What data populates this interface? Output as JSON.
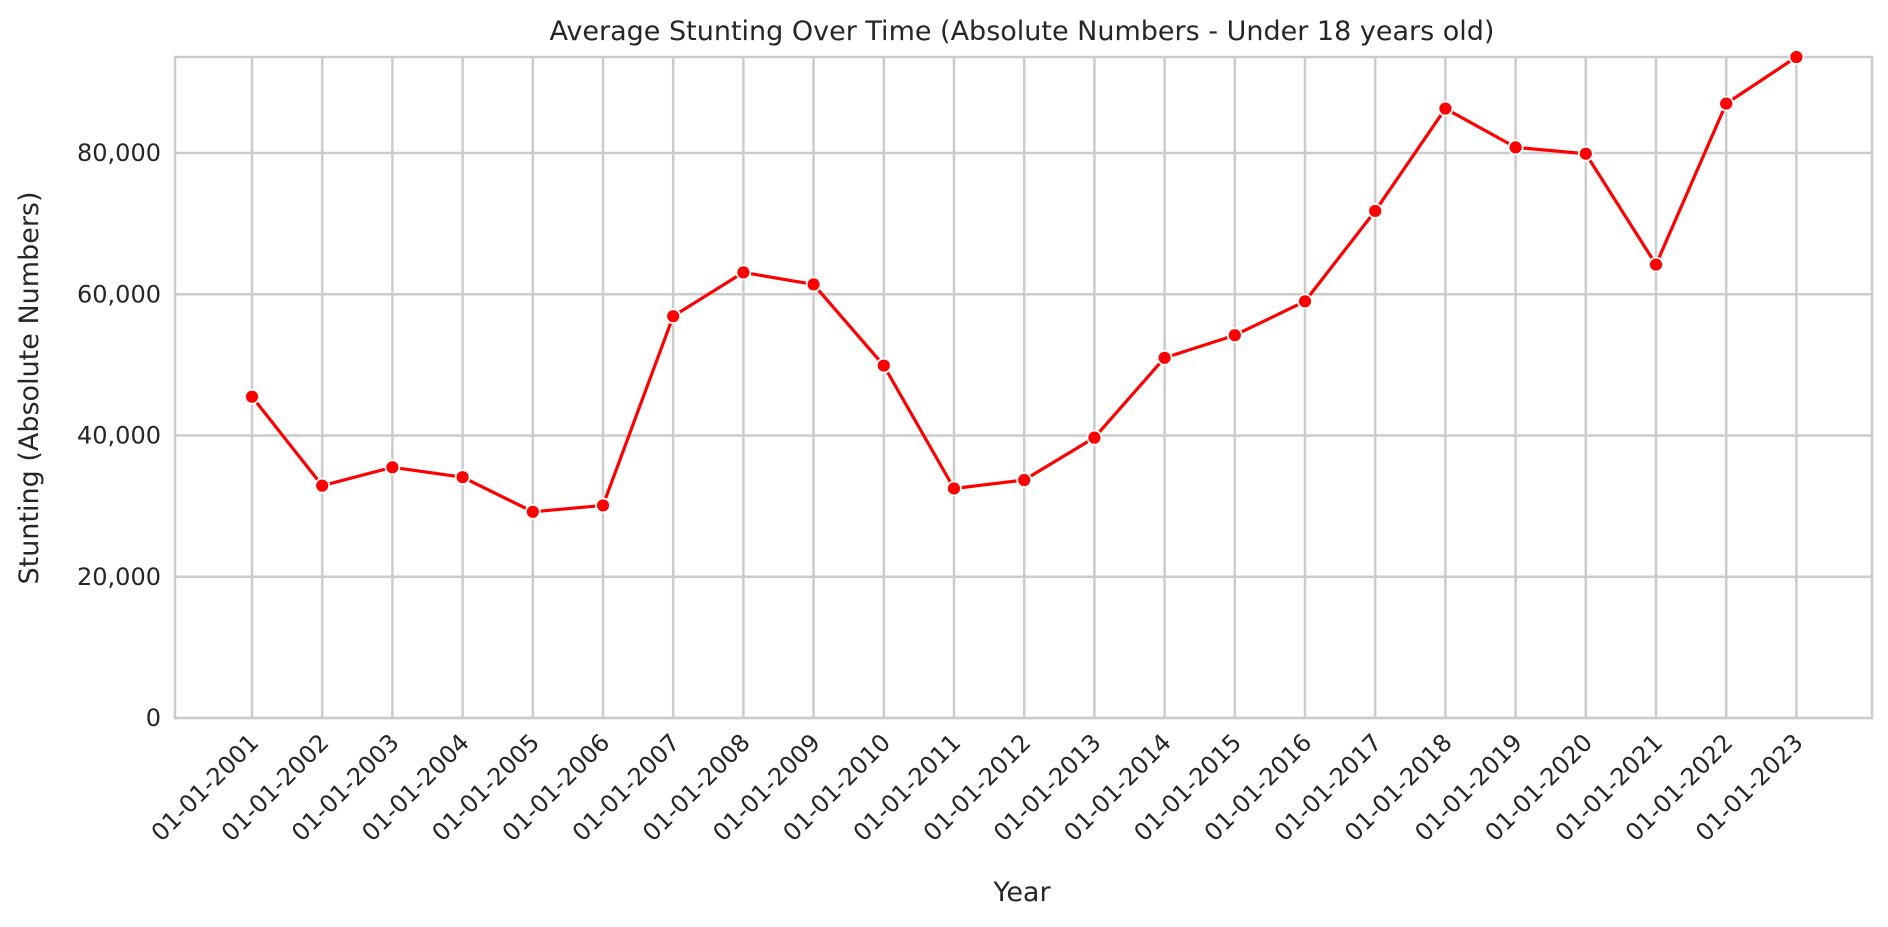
{
  "chart_data": {
    "type": "line",
    "title": "Average Stunting Over Time (Absolute Numbers - Under 18 years old)",
    "xlabel": "Year",
    "ylabel": "Stunting (Absolute Numbers)",
    "categories": [
      "01-01-2001",
      "01-01-2002",
      "01-01-2003",
      "01-01-2004",
      "01-01-2005",
      "01-01-2006",
      "01-01-2007",
      "01-01-2008",
      "01-01-2009",
      "01-01-2010",
      "01-01-2011",
      "01-01-2012",
      "01-01-2013",
      "01-01-2014",
      "01-01-2015",
      "01-01-2016",
      "01-01-2017",
      "01-01-2018",
      "01-01-2019",
      "01-01-2020",
      "01-01-2021",
      "01-01-2022",
      "01-01-2023"
    ],
    "series": [
      {
        "values": [
          45500,
          32900,
          35500,
          34100,
          29200,
          30100,
          56900,
          63100,
          61400,
          49900,
          32500,
          33700,
          39700,
          51000,
          54200,
          59000,
          71800,
          86300,
          80800,
          79900,
          64200,
          87000,
          93600
        ]
      }
    ],
    "ylim": [
      0,
      93600
    ],
    "yticks": [
      0,
      20000,
      40000,
      60000,
      80000
    ],
    "ytick_labels": [
      "0",
      "20,000",
      "40,000",
      "60,000",
      "80,000"
    ],
    "grid": true,
    "legend": "none",
    "color": "#ff0000"
  }
}
